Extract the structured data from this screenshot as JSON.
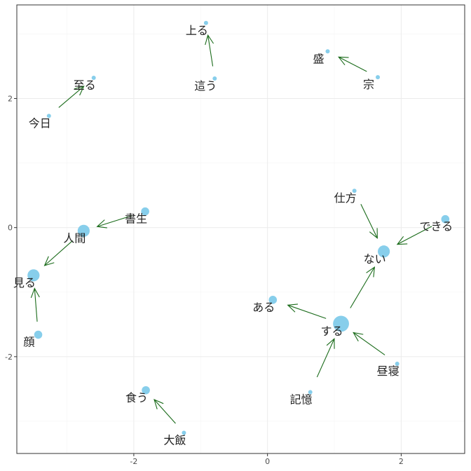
{
  "chart_data": {
    "type": "scatter",
    "title": "",
    "xlabel": "",
    "ylabel": "",
    "xlim": [
      -3.75,
      2.95
    ],
    "ylim": [
      -3.5,
      3.45
    ],
    "x_ticks": [
      -2,
      0,
      2
    ],
    "y_ticks": [
      -2,
      0,
      2
    ],
    "x_tick_labels": [
      "-2",
      "0",
      "2"
    ],
    "y_tick_labels": [
      "-2",
      "0",
      "2"
    ],
    "grid": true,
    "point_color": "#87ceeb",
    "edge_color": "#1a6b1a",
    "nodes": [
      {
        "id": "上る",
        "label": "上る",
        "x": -0.92,
        "y": 3.17,
        "size": 1
      },
      {
        "id": "這う",
        "label": "這う",
        "x": -0.79,
        "y": 2.31,
        "size": 1
      },
      {
        "id": "盛",
        "label": "盛",
        "x": 0.9,
        "y": 2.73,
        "size": 1
      },
      {
        "id": "宗",
        "label": "宗",
        "x": 1.65,
        "y": 2.33,
        "size": 1
      },
      {
        "id": "至る",
        "label": "至る",
        "x": -2.6,
        "y": 2.32,
        "size": 1
      },
      {
        "id": "今日",
        "label": "今日",
        "x": -3.27,
        "y": 1.73,
        "size": 1
      },
      {
        "id": "仕方",
        "label": "仕方",
        "x": 1.3,
        "y": 0.57,
        "size": 1
      },
      {
        "id": "できる",
        "label": "できる",
        "x": 2.66,
        "y": 0.13,
        "size": 2
      },
      {
        "id": "書生",
        "label": "書生",
        "x": -1.83,
        "y": 0.25,
        "size": 2
      },
      {
        "id": "人間",
        "label": "人間",
        "x": -2.75,
        "y": -0.05,
        "size": 3
      },
      {
        "id": "ない",
        "label": "ない",
        "x": 1.74,
        "y": -0.37,
        "size": 3
      },
      {
        "id": "見る",
        "label": "見る",
        "x": -3.5,
        "y": -0.74,
        "size": 3
      },
      {
        "id": "ある",
        "label": "ある",
        "x": 0.08,
        "y": -1.12,
        "size": 2
      },
      {
        "id": "する",
        "label": "する",
        "x": 1.1,
        "y": -1.49,
        "size": 4
      },
      {
        "id": "顔",
        "label": "顔",
        "x": -3.43,
        "y": -1.66,
        "size": 2
      },
      {
        "id": "昼寝",
        "label": "昼寝",
        "x": 1.94,
        "y": -2.11,
        "size": 1
      },
      {
        "id": "記憶",
        "label": "記憶",
        "x": 0.64,
        "y": -2.55,
        "size": 1
      },
      {
        "id": "食う",
        "label": "食う",
        "x": -1.82,
        "y": -2.52,
        "size": 2
      },
      {
        "id": "大飯",
        "label": "大飯",
        "x": -1.25,
        "y": -3.18,
        "size": 1
      }
    ],
    "edges": [
      {
        "from": "這う",
        "to": "上る"
      },
      {
        "from": "宗",
        "to": "盛"
      },
      {
        "from": "今日",
        "to": "至る"
      },
      {
        "from": "仕方",
        "to": "ない"
      },
      {
        "from": "できる",
        "to": "ない"
      },
      {
        "from": "書生",
        "to": "人間"
      },
      {
        "from": "人間",
        "to": "見る"
      },
      {
        "from": "顔",
        "to": "見る"
      },
      {
        "from": "する",
        "to": "ない"
      },
      {
        "from": "する",
        "to": "ある"
      },
      {
        "from": "昼寝",
        "to": "する"
      },
      {
        "from": "記憶",
        "to": "する"
      },
      {
        "from": "大飯",
        "to": "食う"
      }
    ]
  }
}
